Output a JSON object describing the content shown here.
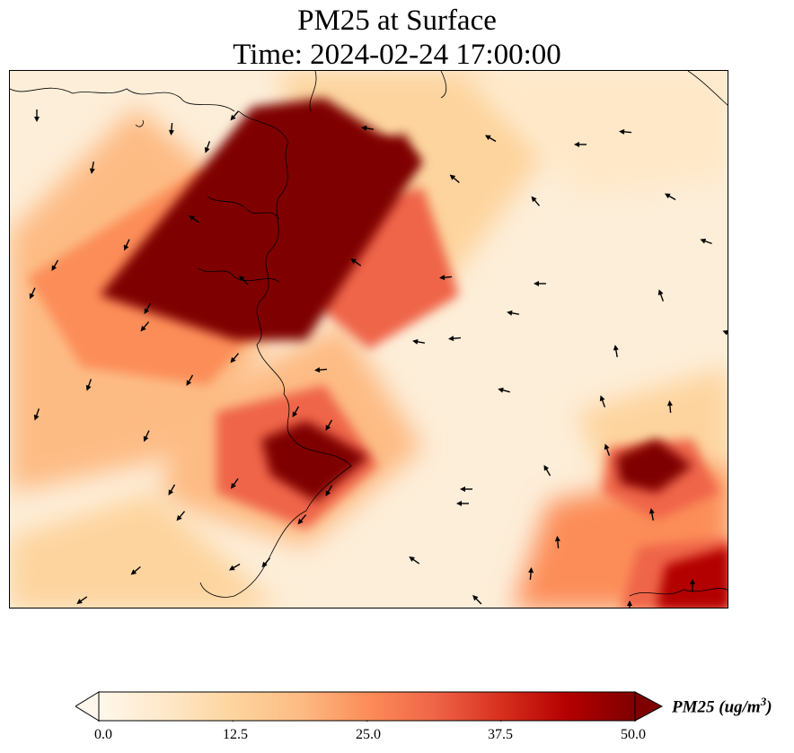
{
  "title": {
    "line1": "PM25 at Surface",
    "line2": "Time: 2024-02-24 17:00:00"
  },
  "map": {
    "variable": "PM25",
    "level": "Surface",
    "time": "2024-02-24 17:00:00",
    "colormap": "OrRd",
    "value_range": [
      0.0,
      50.0
    ],
    "background_color": "#fdeed9",
    "hotspots": [
      {
        "name": "northwest-plume",
        "peak_ug_m3": 50
      },
      {
        "name": "central-south-cluster",
        "peak_ug_m3": 50
      },
      {
        "name": "east-cluster",
        "peak_ug_m3": 45
      },
      {
        "name": "southeast-corner",
        "peak_ug_m3": 42
      }
    ],
    "layers": [
      "pm25-field",
      "coastlines",
      "wind-vectors"
    ]
  },
  "colorbar": {
    "label_main": "PM25 (ug/m",
    "label_sup": "3",
    "label_close": ")",
    "ticks": [
      "0.0",
      "12.5",
      "25.0",
      "37.5",
      "50.0"
    ],
    "extend": "both",
    "colors": [
      "#fff7ec",
      "#fee8c8",
      "#fdd49e",
      "#fdbb84",
      "#fc8d59",
      "#ef6548",
      "#d7301f",
      "#b30000",
      "#7f0000"
    ]
  }
}
